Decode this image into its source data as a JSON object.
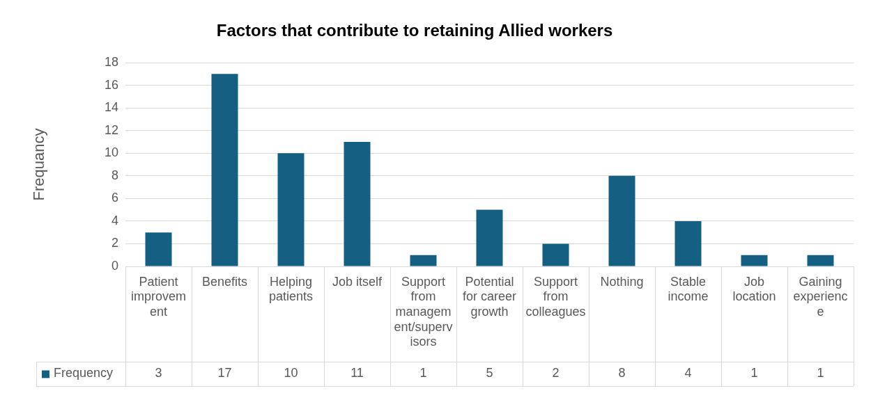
{
  "chart_data": {
    "type": "bar",
    "title": "Factors that contribute to retaining Allied workers",
    "ylabel": "Frequancy",
    "categories": [
      "Patient improvement",
      "Benefits",
      "Helping patients",
      "Job itself",
      "Support from management/supervisors",
      "Potential for career growth",
      "Support from colleagues",
      "Nothing",
      "Stable income",
      "Job location",
      "Gaining experience"
    ],
    "series": [
      {
        "name": "Frequency",
        "color": "#156082",
        "values": [
          3,
          17,
          10,
          11,
          1,
          5,
          2,
          8,
          4,
          1,
          1
        ]
      }
    ],
    "ylim": [
      0,
      18
    ],
    "yticks": [
      0,
      2,
      4,
      6,
      8,
      10,
      12,
      14,
      16,
      18
    ],
    "grid": "y",
    "legend": "bottom",
    "data_labels": true
  }
}
